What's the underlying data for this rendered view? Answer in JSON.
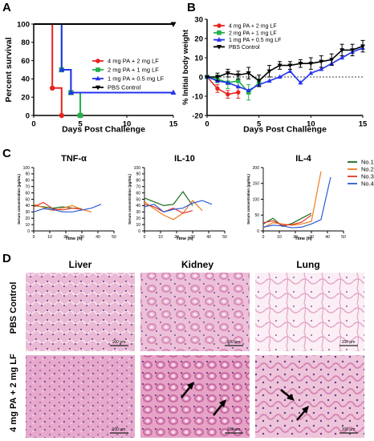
{
  "panel_letters": [
    "A",
    "B",
    "C",
    "D"
  ],
  "colors": {
    "red": "#e8231f",
    "green": "#22b14c",
    "blue": "#2433f0",
    "black": "#000000",
    "c_green": "#1a6b1a",
    "c_orange": "#f07c1c",
    "c_red": "#e5372a",
    "c_blue": "#2a5cd8",
    "tissue_pink": "#e6a8c9",
    "tissue_light": "#f3d8e7"
  },
  "chart_data": [
    {
      "id": "A",
      "type": "line",
      "step": true,
      "xlabel": "Days Post Challenge",
      "ylabel": "Percent survival",
      "xlim": [
        0,
        15
      ],
      "ylim": [
        0,
        100
      ],
      "xticks": [
        "0",
        "5",
        "10",
        "15"
      ],
      "yticks": [
        "0",
        "20",
        "40",
        "60",
        "80",
        "100"
      ],
      "legend": "center",
      "series": [
        {
          "name": "4 mg PA + 2 mg LF",
          "color": "red",
          "marker": "circle",
          "x": [
            0,
            2,
            2,
            3,
            3
          ],
          "y": [
            100,
            100,
            30,
            30,
            0
          ]
        },
        {
          "name": "2 mg PA + 1 mg LF",
          "color": "green",
          "marker": "square",
          "x": [
            0,
            3,
            3,
            4,
            4,
            5,
            5
          ],
          "y": [
            100,
            100,
            50,
            50,
            25,
            25,
            0
          ]
        },
        {
          "name": "1 mg PA + 0.5 mg LF",
          "color": "blue",
          "marker": "triangle",
          "x": [
            0,
            3,
            3,
            4,
            4,
            15
          ],
          "y": [
            100,
            100,
            50,
            50,
            25,
            25
          ]
        },
        {
          "name": "PBS Control",
          "color": "black",
          "marker": "triangle-down",
          "x": [
            0,
            15
          ],
          "y": [
            100,
            100
          ]
        }
      ]
    },
    {
      "id": "B",
      "type": "line",
      "xlabel": "Days Post Challenge",
      "ylabel": "% Initial body weight",
      "xlim": [
        0,
        15
      ],
      "ylim": [
        -20,
        30
      ],
      "xticks": [
        "0",
        "5",
        "10",
        "15"
      ],
      "yticks": [
        "-20",
        "-10",
        "0",
        "10",
        "20",
        "30"
      ],
      "legend": "top-left",
      "series": [
        {
          "name": "4 mg PA + 2 mg LF",
          "color": "red",
          "marker": "circle",
          "x": [
            0,
            1,
            2,
            3
          ],
          "y": [
            0,
            -6,
            -9,
            -8
          ],
          "err": [
            0,
            2,
            2,
            3
          ]
        },
        {
          "name": "2 mg PA + 1 mg LF",
          "color": "green",
          "marker": "square",
          "x": [
            0,
            1,
            2,
            3,
            4,
            5
          ],
          "y": [
            0,
            -1,
            -3,
            -2,
            -8,
            -3
          ],
          "err": [
            0,
            2,
            3,
            3,
            4,
            2
          ]
        },
        {
          "name": "1 mg PA + 0.5 mg LF",
          "color": "blue",
          "marker": "triangle",
          "x": [
            0,
            1,
            2,
            3,
            4,
            5,
            6,
            7,
            8,
            9,
            10,
            11,
            12,
            13,
            14,
            15
          ],
          "y": [
            0,
            -2,
            -3,
            -5,
            -7,
            -4,
            -2,
            0,
            3,
            -3,
            2,
            4,
            7,
            10,
            13,
            15
          ],
          "err": []
        },
        {
          "name": "PBS Control",
          "color": "black",
          "marker": "triangle-down",
          "x": [
            0,
            1,
            2,
            3,
            4,
            5,
            6,
            7,
            8,
            9,
            10,
            11,
            12,
            13,
            14,
            15
          ],
          "y": [
            0,
            0,
            2,
            1,
            2,
            -2,
            3,
            6,
            6,
            7,
            7,
            8,
            9,
            14,
            14,
            16
          ],
          "err": [
            0,
            2,
            2,
            2,
            3,
            3,
            3,
            2,
            2,
            2,
            3,
            3,
            3,
            3,
            3,
            3
          ]
        }
      ]
    },
    {
      "id": "C1",
      "type": "line",
      "title": "TNF-α",
      "xlabel": "Time (h)",
      "ylabel": "Serum concentration (pg/mL)",
      "xlim": [
        0,
        50
      ],
      "ylim": [
        0,
        100
      ],
      "xticks": [
        "0",
        "10",
        "20",
        "30",
        "40",
        "50"
      ],
      "yticks": [
        "0",
        "10",
        "20",
        "30",
        "40",
        "50",
        "60",
        "70",
        "80",
        "90",
        "100"
      ],
      "series": [
        {
          "name": "No.1",
          "color": "c_green",
          "x": [
            0,
            6,
            12,
            18,
            24,
            30
          ],
          "y": [
            40,
            38,
            36,
            38,
            36,
            35
          ]
        },
        {
          "name": "No.2",
          "color": "c_orange",
          "x": [
            0,
            6,
            12,
            18,
            24,
            30,
            36
          ],
          "y": [
            42,
            37,
            32,
            36,
            40,
            34,
            30
          ]
        },
        {
          "name": "No.3",
          "color": "c_red",
          "x": [
            0,
            6,
            12,
            18,
            24,
            30
          ],
          "y": [
            38,
            45,
            35,
            33,
            36,
            34
          ]
        },
        {
          "name": "No.4",
          "color": "c_blue",
          "x": [
            0,
            6,
            12,
            18,
            24,
            30,
            36,
            42
          ],
          "y": [
            30,
            35,
            34,
            30,
            30,
            33,
            36,
            42
          ]
        }
      ]
    },
    {
      "id": "C2",
      "type": "line",
      "title": "IL-10",
      "xlabel": "Time (h)",
      "ylabel": "Serum concentration (pg/mL)",
      "xlim": [
        0,
        50
      ],
      "ylim": [
        0,
        100
      ],
      "xticks": [
        "0",
        "10",
        "20",
        "30",
        "40",
        "50"
      ],
      "yticks": [
        "0",
        "10",
        "20",
        "30",
        "40",
        "50",
        "60",
        "70",
        "80",
        "90",
        "100"
      ],
      "series": [
        {
          "name": "No.1",
          "color": "c_green",
          "x": [
            0,
            6,
            12,
            18,
            24,
            30
          ],
          "y": [
            52,
            46,
            40,
            42,
            62,
            40
          ]
        },
        {
          "name": "No.2",
          "color": "c_orange",
          "x": [
            0,
            6,
            12,
            18,
            24,
            30,
            36
          ],
          "y": [
            46,
            35,
            25,
            18,
            28,
            48,
            32
          ]
        },
        {
          "name": "No.3",
          "color": "c_red",
          "x": [
            0,
            6,
            12,
            18,
            24,
            30
          ],
          "y": [
            42,
            38,
            30,
            36,
            28,
            32
          ]
        },
        {
          "name": "No.4",
          "color": "c_blue",
          "x": [
            0,
            6,
            12,
            18,
            24,
            30,
            36,
            42
          ],
          "y": [
            38,
            42,
            30,
            34,
            36,
            44,
            48,
            42
          ]
        }
      ]
    },
    {
      "id": "C3",
      "type": "line",
      "title": "IL-4",
      "xlabel": "Time (h)",
      "ylabel": "Serum concentration (pg/mL)",
      "xlim": [
        0,
        50
      ],
      "ylim": [
        0,
        200
      ],
      "xticks": [
        "0",
        "10",
        "20",
        "30",
        "40",
        "50"
      ],
      "yticks": [
        "0",
        "50",
        "100",
        "150",
        "200"
      ],
      "legend": "right",
      "series": [
        {
          "name": "No.1",
          "color": "c_green",
          "x": [
            0,
            6,
            12,
            18,
            24,
            30
          ],
          "y": [
            22,
            40,
            14,
            24,
            40,
            56
          ]
        },
        {
          "name": "No.2",
          "color": "c_orange",
          "x": [
            0,
            6,
            12,
            18,
            24,
            30,
            36
          ],
          "y": [
            10,
            26,
            22,
            18,
            22,
            30,
            188
          ]
        },
        {
          "name": "No.3",
          "color": "c_red",
          "x": [
            0,
            6,
            12,
            18,
            24,
            30
          ],
          "y": [
            26,
            32,
            18,
            20,
            28,
            50
          ]
        },
        {
          "name": "No.4",
          "color": "c_blue",
          "x": [
            0,
            6,
            12,
            18,
            24,
            30,
            36,
            42
          ],
          "y": [
            12,
            18,
            16,
            10,
            12,
            22,
            36,
            170
          ]
        }
      ]
    }
  ],
  "histology": {
    "columns": [
      "Liver",
      "Kidney",
      "Lung"
    ],
    "rows": [
      "PBS Control",
      "4 mg PA + 2 mg LF"
    ],
    "scale_bar": "100 μm"
  }
}
